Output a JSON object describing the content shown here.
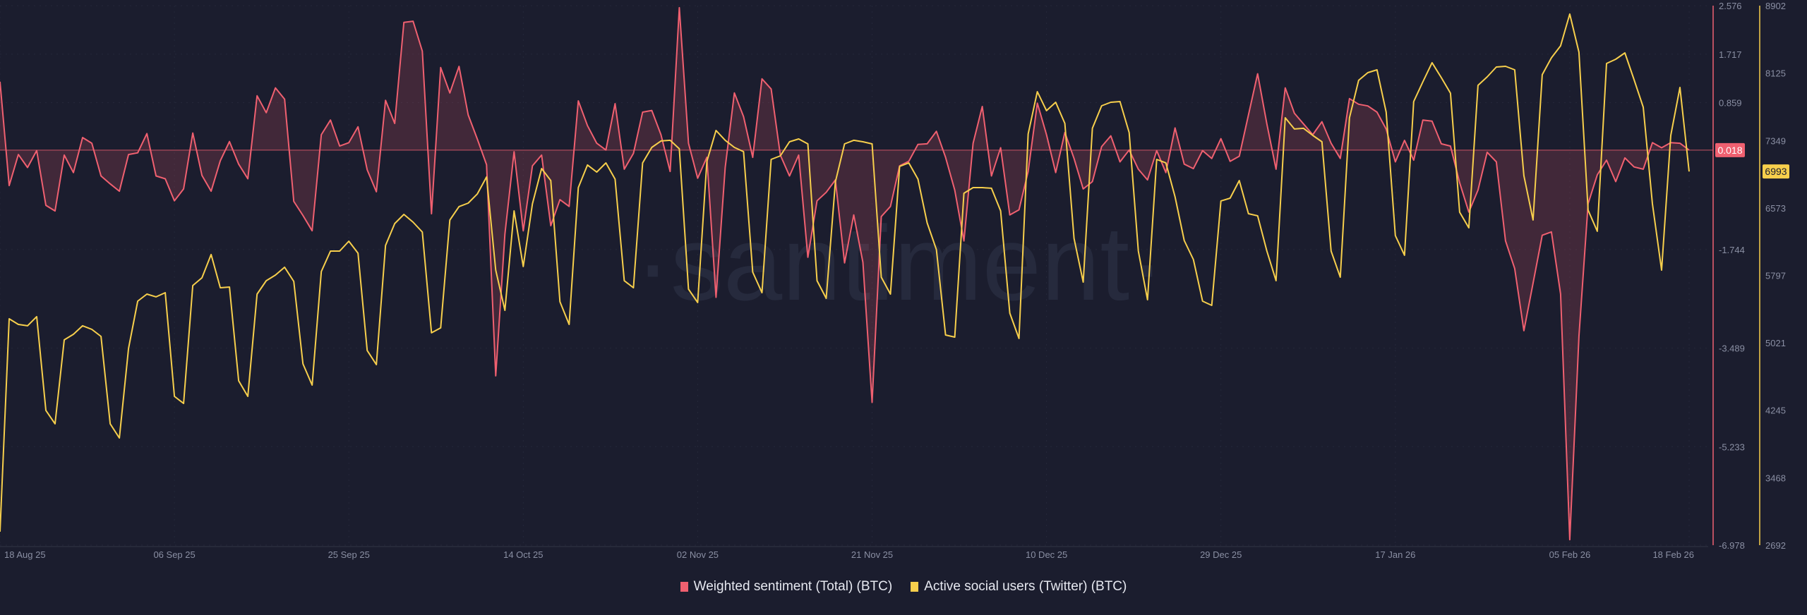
{
  "colors": {
    "background": "#1b1d2e",
    "sentiment": "#f06070",
    "sentiment_fill": "rgba(240,96,112,0.18)",
    "users": "#f7cf4c",
    "axis_text": "#8a8fa3",
    "grid": "#25283a",
    "watermark": "#262a3d"
  },
  "watermark": "·santiment·",
  "legend": {
    "items": [
      {
        "label": "Weighted sentiment (Total) (BTC)",
        "color": "#f06070"
      },
      {
        "label": "Active social users (Twitter) (BTC)",
        "color": "#f7cf4c"
      }
    ]
  },
  "badges": {
    "sentiment_last": "0.018",
    "users_last": "6993"
  },
  "chart_data": {
    "type": "line",
    "title": "",
    "xlabel": "",
    "x_ticks": [
      "18 Aug 25",
      "06 Sep 25",
      "25 Sep 25",
      "14 Oct 25",
      "02 Nov 25",
      "21 Nov 25",
      "10 Dec 25",
      "29 Dec 25",
      "17 Jan 26",
      "05 Feb 26",
      "18 Feb 26"
    ],
    "x_tick_index": [
      0,
      19,
      38,
      57,
      76,
      95,
      114,
      133,
      152,
      171,
      184
    ],
    "x_range": [
      "18 Aug 25",
      "18 Feb 26"
    ],
    "grid": true,
    "legend_position": "bottom",
    "axes": [
      {
        "name": "Weighted sentiment (Total) (BTC)",
        "side": "right",
        "ylim": [
          -6.978,
          2.576
        ],
        "ticks": [
          "2.576",
          "1.717",
          "0.859",
          "-1.744",
          "-3.489",
          "-5.233",
          "-6.978"
        ],
        "tick_values": [
          2.576,
          1.717,
          0.859,
          -1.744,
          -3.489,
          -5.233,
          -6.978
        ]
      },
      {
        "name": "Active social users (Twitter) (BTC)",
        "side": "right",
        "ylim": [
          2692,
          8902
        ],
        "ticks": [
          "8902",
          "8125",
          "7349",
          "6573",
          "5797",
          "5021",
          "4245",
          "3468",
          "2692"
        ],
        "tick_values": [
          8902,
          8125,
          7349,
          6573,
          5797,
          5021,
          4245,
          3468,
          2692
        ]
      }
    ],
    "series": [
      {
        "name": "Weighted sentiment (Total) (BTC)",
        "axis": 0,
        "style": "area-baseline",
        "baseline": 0.018,
        "values": [
          1.23,
          -0.61,
          -0.06,
          -0.29,
          0.01,
          -0.96,
          -1.06,
          -0.07,
          -0.38,
          0.24,
          0.14,
          -0.44,
          -0.58,
          -0.71,
          -0.06,
          -0.03,
          0.31,
          -0.44,
          -0.49,
          -0.88,
          -0.67,
          0.32,
          -0.43,
          -0.71,
          -0.17,
          0.17,
          -0.23,
          -0.49,
          0.98,
          0.68,
          1.12,
          0.92,
          -0.89,
          -1.14,
          -1.41,
          0.29,
          0.55,
          0.09,
          0.15,
          0.43,
          -0.33,
          -0.72,
          0.9,
          0.49,
          2.28,
          2.3,
          1.77,
          -1.11,
          1.48,
          1.03,
          1.5,
          0.64,
          0.21,
          -0.24,
          -3.98,
          -1.47,
          -0.01,
          -1.41,
          -0.26,
          -0.07,
          -1.32,
          -0.86,
          -0.98,
          0.89,
          0.45,
          0.14,
          0.02,
          0.84,
          -0.32,
          -0.04,
          0.69,
          0.72,
          0.29,
          -0.36,
          2.54,
          0.14,
          -0.48,
          -0.11,
          -2.59,
          -0.29,
          1.03,
          0.61,
          -0.11,
          1.28,
          1.1,
          -0.07,
          -0.44,
          -0.07,
          -1.88,
          -0.88,
          -0.73,
          -0.51,
          -1.98,
          -1.13,
          -1.97,
          -4.45,
          -1.16,
          -0.98,
          -0.26,
          -0.18,
          0.12,
          0.13,
          0.35,
          -0.11,
          -0.69,
          -1.59,
          0.14,
          0.79,
          -0.44,
          0.06,
          -1.13,
          -1.04,
          -0.36,
          0.85,
          0.29,
          -0.38,
          0.33,
          -0.13,
          -0.67,
          -0.54,
          0.08,
          0.27,
          -0.19,
          0.02,
          -0.32,
          -0.51,
          0.01,
          -0.38,
          0.41,
          -0.23,
          -0.31,
          0.01,
          -0.13,
          0.22,
          -0.18,
          -0.09,
          0.64,
          1.37,
          0.48,
          -0.32,
          1.12,
          0.67,
          0.48,
          0.29,
          0.52,
          0.14,
          -0.13,
          0.93,
          0.83,
          0.8,
          0.69,
          0.39,
          -0.19,
          0.19,
          -0.16,
          0.55,
          0.53,
          0.13,
          0.09,
          -0.56,
          -1.08,
          -0.69,
          -0.02,
          -0.19,
          -1.59,
          -2.08,
          -3.18,
          -2.34,
          -1.49,
          -1.43,
          -2.53,
          -6.88,
          -3.28,
          -0.93,
          -0.42,
          -0.16,
          -0.54,
          -0.12,
          -0.28,
          -0.32,
          0.15,
          0.06,
          0.15,
          0.14,
          0.018
        ]
      },
      {
        "name": "Active social users (Twitter) (BTC)",
        "axis": 1,
        "style": "line",
        "values": [
          2847,
          5298,
          5233,
          5217,
          5322,
          4243,
          4089,
          5055,
          5119,
          5217,
          5176,
          5095,
          4089,
          3926,
          4957,
          5501,
          5582,
          5550,
          5598,
          4405,
          4324,
          5680,
          5769,
          6037,
          5655,
          5663,
          4584,
          4405,
          5582,
          5736,
          5801,
          5891,
          5728,
          4779,
          4535,
          5842,
          6077,
          6077,
          6191,
          6053,
          4933,
          4770,
          6142,
          6394,
          6499,
          6410,
          6296,
          5136,
          5193,
          6434,
          6589,
          6629,
          6735,
          6930,
          5858,
          5395,
          6540,
          5899,
          6621,
          7027,
          6889,
          5493,
          5233,
          6808,
          7068,
          6986,
          7092,
          6905,
          5736,
          5655,
          7092,
          7270,
          7344,
          7352,
          7254,
          5639,
          5485,
          7108,
          7465,
          7352,
          7270,
          7222,
          5834,
          5598,
          7132,
          7173,
          7335,
          7368,
          7311,
          5736,
          5533,
          6873,
          7311,
          7352,
          7335,
          7311,
          5777,
          5582,
          7051,
          7092,
          6905,
          6402,
          6094,
          5111,
          5087,
          6743,
          6808,
          6808,
          6800,
          6540,
          5363,
          5071,
          7425,
          7912,
          7693,
          7790,
          7546,
          6223,
          5720,
          7490,
          7749,
          7790,
          7798,
          7441,
          6077,
          5517,
          7132,
          7092,
          6702,
          6199,
          5980,
          5501,
          5452,
          6654,
          6686,
          6889,
          6507,
          6483,
          6077,
          5736,
          7611,
          7482,
          7490,
          7408,
          7335,
          6077,
          5777,
          7611,
          8042,
          8131,
          8163,
          7676,
          6256,
          6029,
          7798,
          8025,
          8245,
          8074,
          7895,
          6524,
          6345,
          7985,
          8082,
          8196,
          8204,
          8163,
          6946,
          6435,
          8107,
          8301,
          8439,
          8805,
          8366,
          6548,
          6305,
          8236,
          8285,
          8358,
          8050,
          7733,
          6621,
          5858,
          7408,
          7960,
          6993
        ]
      }
    ]
  }
}
